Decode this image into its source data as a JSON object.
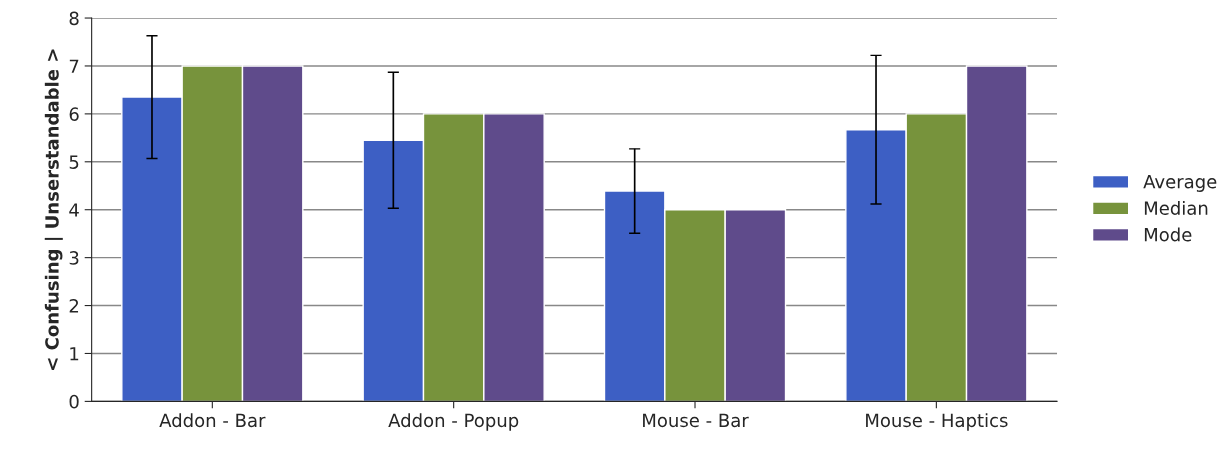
{
  "chart_data": {
    "type": "bar",
    "ylabel": "< Confusing | Unserstandable >",
    "categories": [
      "Addon - Bar",
      "Addon - Popup",
      "Mouse - Bar",
      "Mouse - Haptics"
    ],
    "series": [
      {
        "name": "Average",
        "color": "#3d5fc4",
        "values": [
          6.35,
          5.45,
          4.39,
          5.67
        ],
        "errors": [
          1.28,
          1.42,
          0.88,
          1.55
        ]
      },
      {
        "name": "Median",
        "color": "#77933c",
        "values": [
          7,
          6,
          4,
          6
        ]
      },
      {
        "name": "Mode",
        "color": "#5f4b8b",
        "values": [
          7,
          6,
          4,
          7
        ]
      }
    ],
    "ylim": [
      0,
      8
    ],
    "yticks": [
      0,
      1,
      2,
      3,
      4,
      5,
      6,
      7,
      8
    ],
    "grid": "y",
    "legend": "right"
  }
}
